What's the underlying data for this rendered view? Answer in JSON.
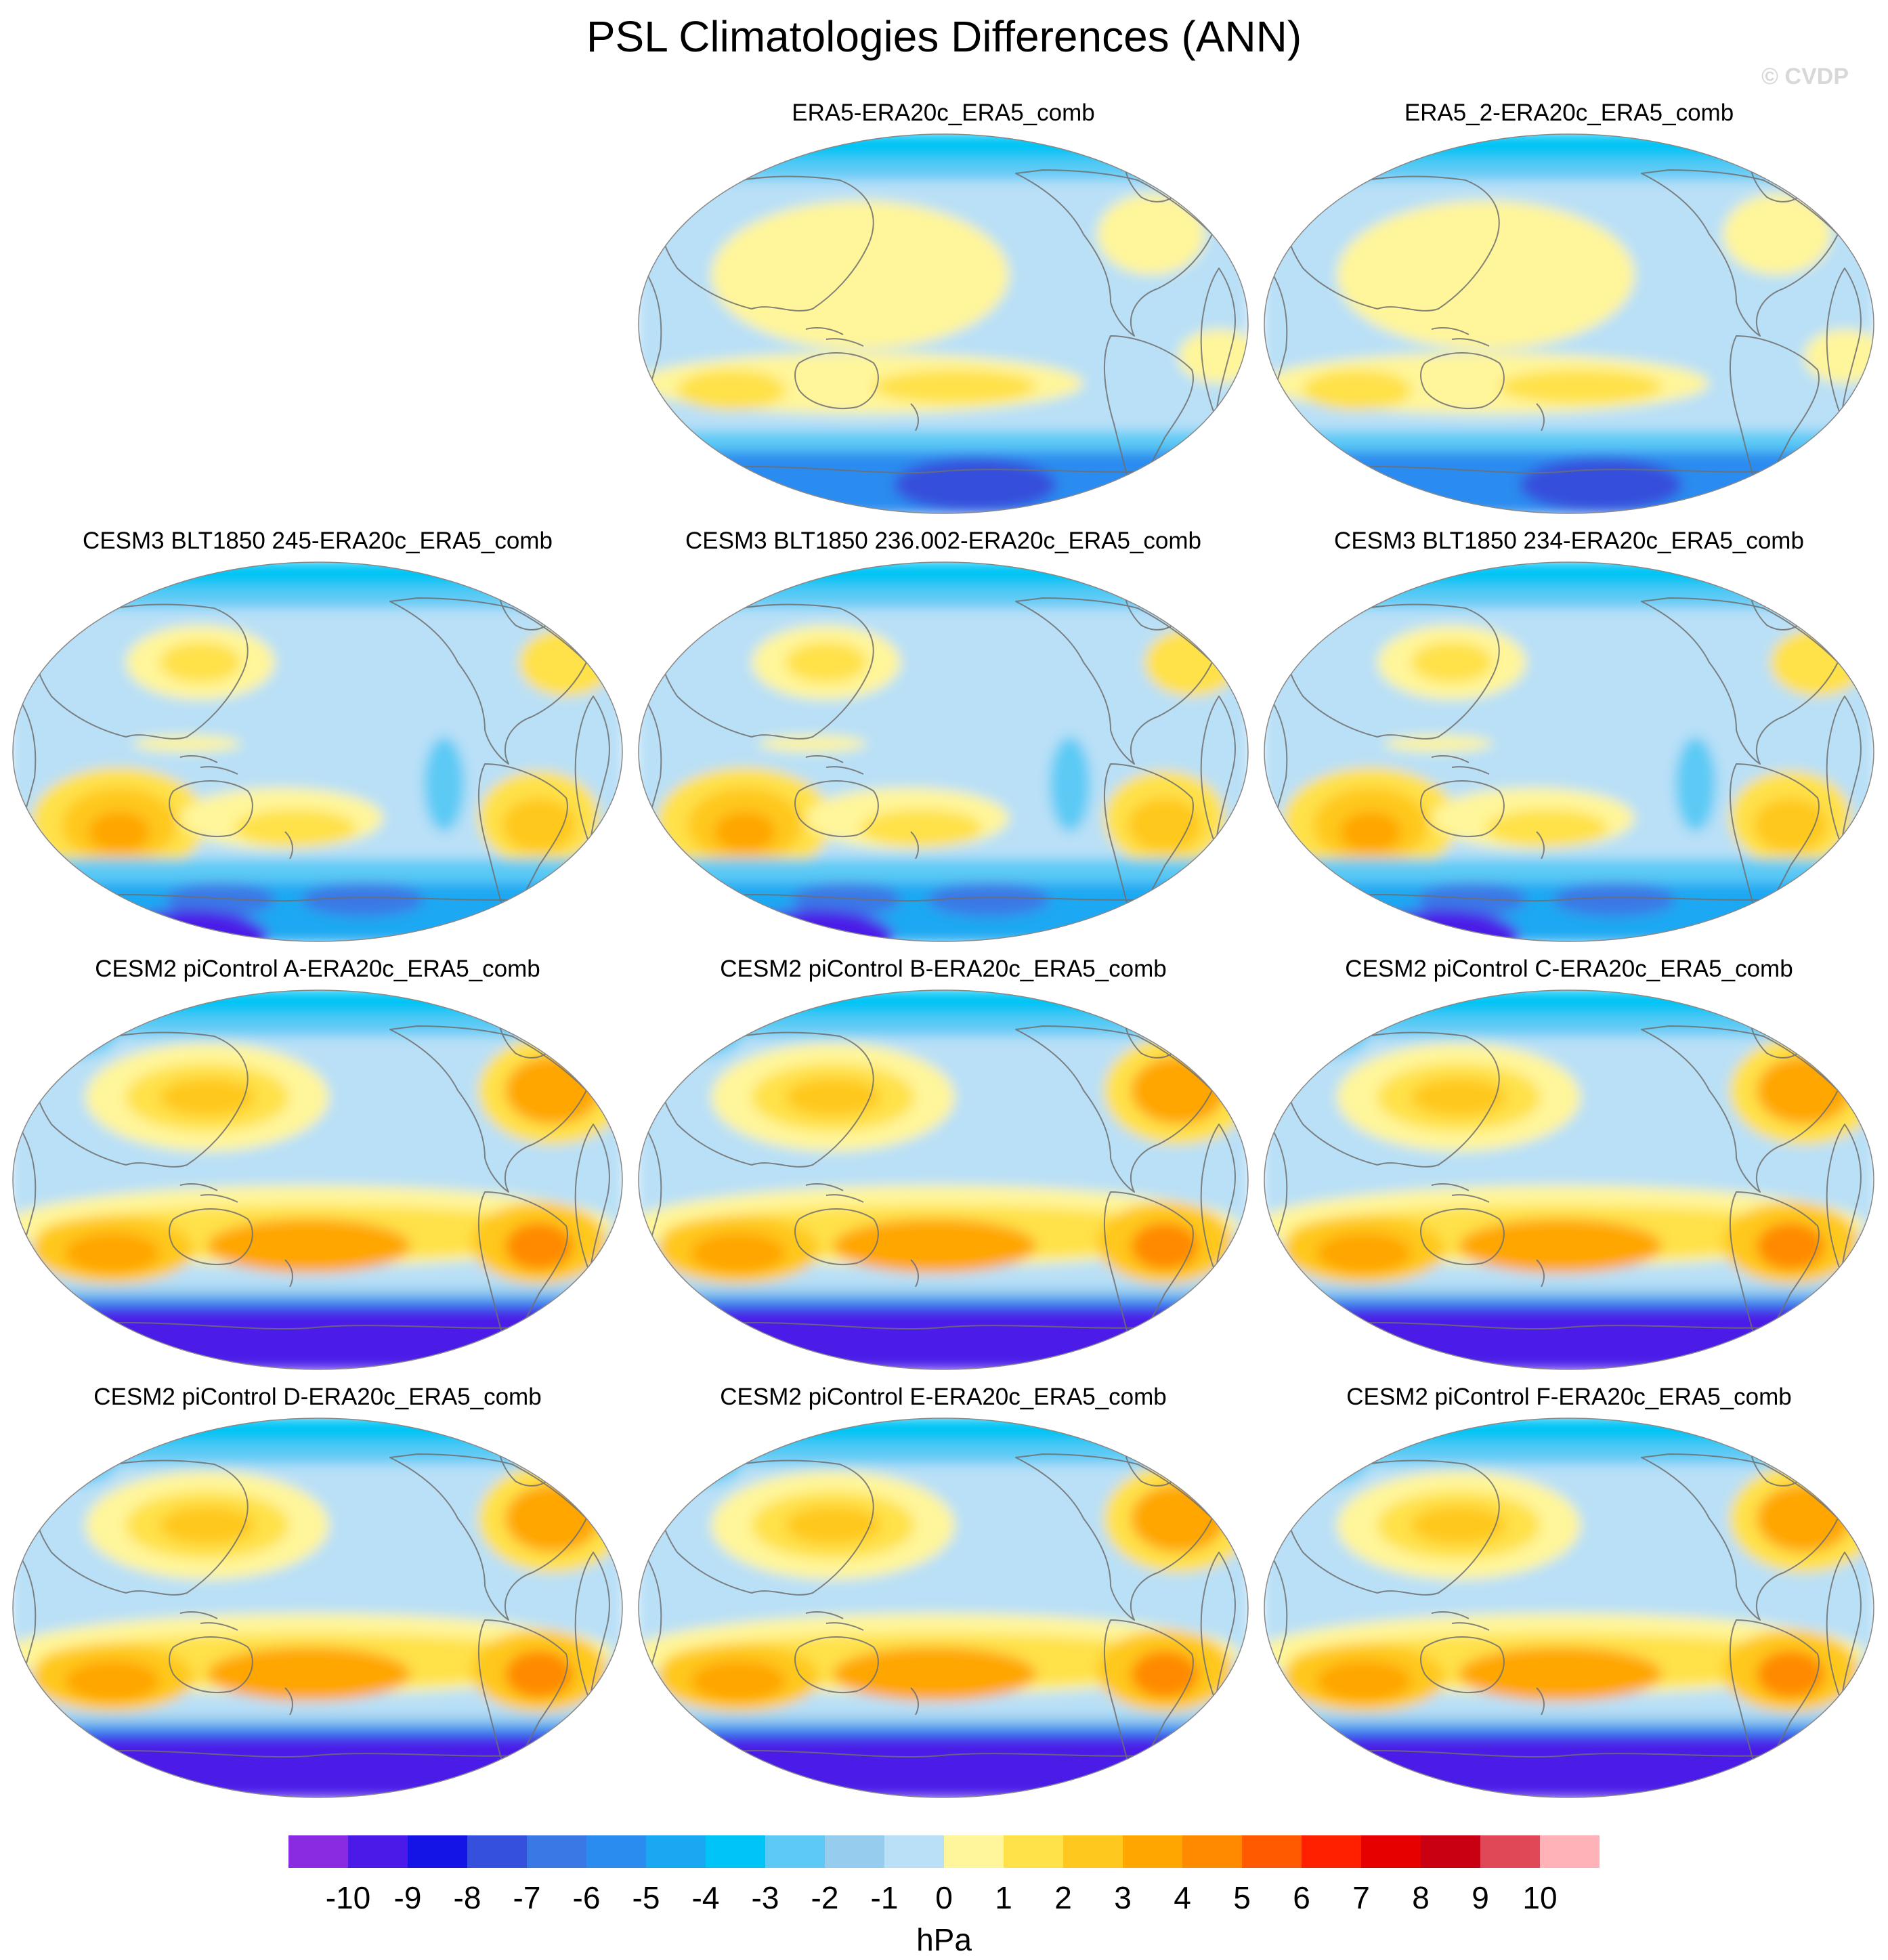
{
  "title": "PSL Climatologies Differences (ANN)",
  "watermark": "© CVDP",
  "units": "hPa",
  "colorbar": {
    "labels": [
      "-10",
      "-9",
      "-8",
      "-7",
      "-6",
      "-5",
      "-4",
      "-3",
      "-2",
      "-1",
      "0",
      "1",
      "2",
      "3",
      "4",
      "5",
      "6",
      "7",
      "8",
      "9",
      "10"
    ],
    "colors": [
      "#8a2be2",
      "#4b1ae8",
      "#1414e6",
      "#3450dc",
      "#3a78e6",
      "#2b8cf0",
      "#1aa8f2",
      "#00c4f5",
      "#5ccaf5",
      "#96cdee",
      "#b9e0f7",
      "#fff59a",
      "#ffe14a",
      "#ffc81e",
      "#ffa600",
      "#ff8a00",
      "#ff5a00",
      "#ff2000",
      "#e60000",
      "#c80012",
      "#e04858",
      "#ffb3b8"
    ]
  },
  "panels": [
    {
      "title": "ERA5-ERA20c_ERA5_comb",
      "type": "obs"
    },
    {
      "title": "ERA5_2-ERA20c_ERA5_comb",
      "type": "obs"
    },
    {
      "title": "CESM3 BLT1850 245-ERA20c_ERA5_comb",
      "type": "cesm3"
    },
    {
      "title": "CESM3 BLT1850 236.002-ERA20c_ERA5_comb",
      "type": "cesm3"
    },
    {
      "title": "CESM3 BLT1850 234-ERA20c_ERA5_comb",
      "type": "cesm3"
    },
    {
      "title": "CESM2 piControl A-ERA20c_ERA5_comb",
      "type": "cesm2"
    },
    {
      "title": "CESM2 piControl B-ERA20c_ERA5_comb",
      "type": "cesm2"
    },
    {
      "title": "CESM2 piControl C-ERA20c_ERA5_comb",
      "type": "cesm2"
    },
    {
      "title": "CESM2 piControl D-ERA20c_ERA5_comb",
      "type": "cesm2"
    },
    {
      "title": "CESM2 piControl E-ERA20c_ERA5_comb",
      "type": "cesm2"
    },
    {
      "title": "CESM2 piControl F-ERA20c_ERA5_comb",
      "type": "cesm2"
    }
  ]
}
